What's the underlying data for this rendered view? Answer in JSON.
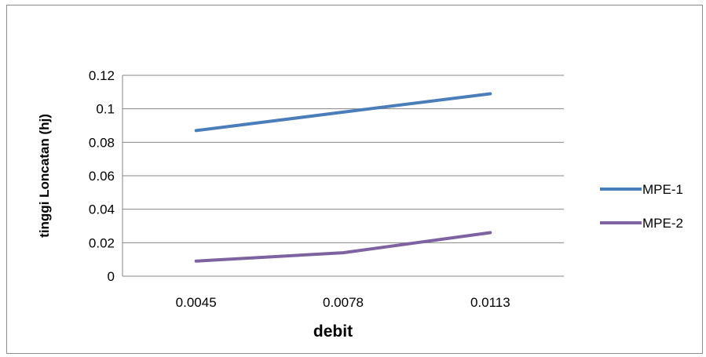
{
  "chart_data": {
    "type": "line",
    "title": "",
    "xlabel": "debit",
    "ylabel": "tinggi Loncatan (hj)",
    "categories": [
      "0.0045",
      "0.0078",
      "0.0113"
    ],
    "ylim": [
      0,
      0.12
    ],
    "yticks": [
      "0",
      "0.02",
      "0.04",
      "0.06",
      "0.08",
      "0.1",
      "0.12"
    ],
    "grid": true,
    "legend_position": "right",
    "series": [
      {
        "name": "MPE-1",
        "color": "#4a7ebb",
        "values": [
          0.087,
          0.098,
          0.109
        ]
      },
      {
        "name": "MPE-2",
        "color": "#7e62a1",
        "values": [
          0.009,
          0.014,
          0.026
        ]
      }
    ]
  }
}
